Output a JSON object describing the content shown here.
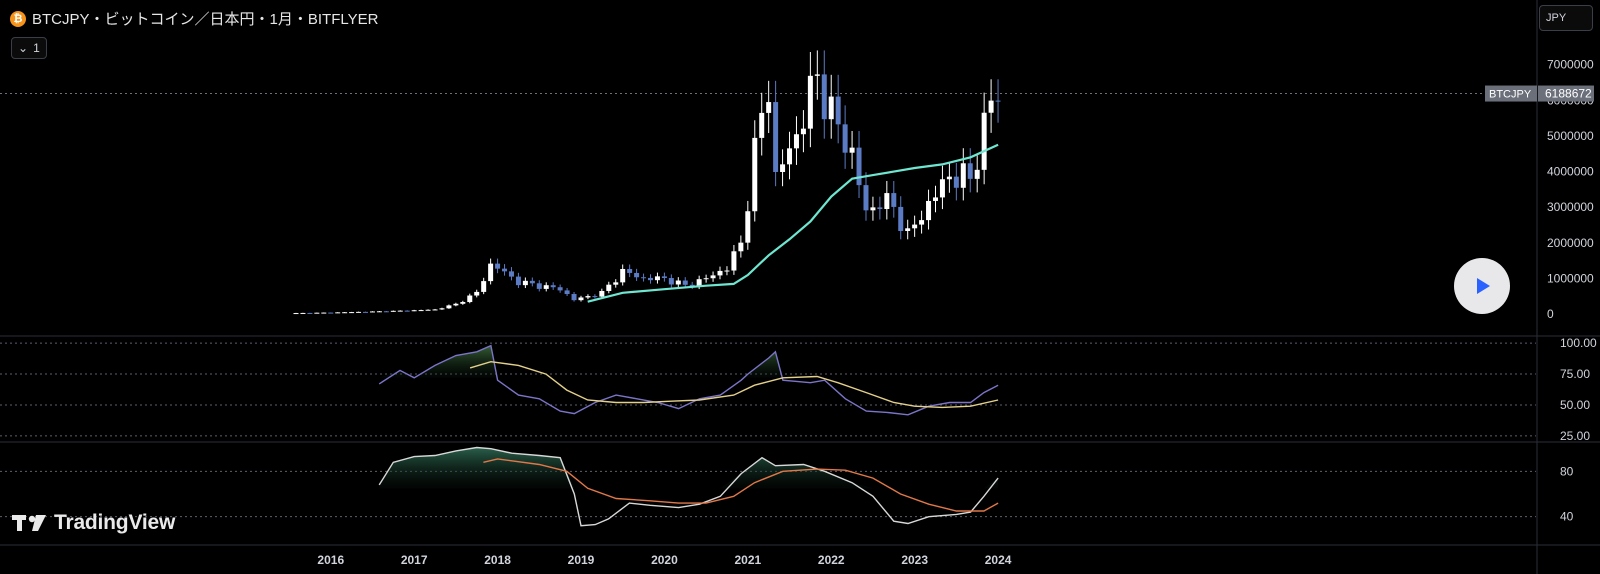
{
  "header": {
    "symbol_title": "BTCJPY・ビットコイン／日本円・1月・BITFLYER",
    "coin_glyph": "₿",
    "interval_button": "1",
    "currency_button": "JPY"
  },
  "price_badge": {
    "symbol": "BTCJPY",
    "value": "6188672"
  },
  "logo": {
    "text": "TradingView"
  },
  "colors": {
    "up_candle": "#ffffff",
    "down_candle": "#5b7bc4",
    "ma_line": "#6ee6d0",
    "rsi_line": "#7b74c9",
    "rsi_ma": "#e3d08a",
    "osc2_line": "#d8d8d8",
    "osc2_ma": "#e07848"
  },
  "chart_data": [
    {
      "type": "candlestick",
      "x_axis_labels": [
        "2016",
        "2017",
        "2018",
        "2019",
        "2020",
        "2021",
        "2022",
        "2023",
        "2024"
      ],
      "x_axis_range": [
        2015.583,
        2024.083
      ],
      "ylim": [
        -500000,
        8700000
      ],
      "y_ticks": [
        0,
        1000000,
        2000000,
        3000000,
        4000000,
        5000000,
        6000000,
        7000000
      ],
      "current_price": 6188672,
      "candles_monthly_approx_close": [
        [
          2015.58,
          30000
        ],
        [
          2016.0,
          45000
        ],
        [
          2016.5,
          72000
        ],
        [
          2016.92,
          100000
        ],
        [
          2017.25,
          130000
        ],
        [
          2017.5,
          280000
        ],
        [
          2017.75,
          600000
        ],
        [
          2017.92,
          1400000
        ],
        [
          2018.0,
          1300000
        ],
        [
          2018.25,
          900000
        ],
        [
          2018.5,
          800000
        ],
        [
          2018.75,
          700000
        ],
        [
          2018.92,
          400000
        ],
        [
          2019.25,
          600000
        ],
        [
          2019.5,
          1200000
        ],
        [
          2019.75,
          1000000
        ],
        [
          2020.0,
          1000000
        ],
        [
          2020.25,
          800000
        ],
        [
          2020.5,
          1000000
        ],
        [
          2020.75,
          1300000
        ],
        [
          2020.92,
          2000000
        ],
        [
          2021.08,
          4500000
        ],
        [
          2021.25,
          6500000
        ],
        [
          2021.33,
          3800000
        ],
        [
          2021.58,
          5000000
        ],
        [
          2021.83,
          6700000
        ],
        [
          2022.0,
          5600000
        ],
        [
          2022.25,
          4500000
        ],
        [
          2022.42,
          2800000
        ],
        [
          2022.58,
          3200000
        ],
        [
          2022.75,
          3000000
        ],
        [
          2022.92,
          2200000
        ],
        [
          2023.17,
          3100000
        ],
        [
          2023.42,
          3900000
        ],
        [
          2023.67,
          3800000
        ],
        [
          2023.83,
          5200000
        ],
        [
          2023.92,
          6000000
        ],
        [
          2024.0,
          6188672
        ]
      ],
      "ma_series": [
        [
          2019.08,
          350000
        ],
        [
          2019.5,
          600000
        ],
        [
          2020.0,
          700000
        ],
        [
          2020.5,
          800000
        ],
        [
          2020.83,
          850000
        ],
        [
          2021.0,
          1100000
        ],
        [
          2021.25,
          1650000
        ],
        [
          2021.5,
          2100000
        ],
        [
          2021.75,
          2600000
        ],
        [
          2022.0,
          3300000
        ],
        [
          2022.25,
          3800000
        ],
        [
          2022.5,
          3900000
        ],
        [
          2022.75,
          4000000
        ],
        [
          2023.0,
          4100000
        ],
        [
          2023.33,
          4200000
        ],
        [
          2023.67,
          4400000
        ],
        [
          2024.0,
          4750000
        ]
      ]
    },
    {
      "type": "line",
      "y_ticks": [
        25,
        50,
        75,
        100
      ],
      "ylim": [
        20,
        105
      ],
      "series": [
        {
          "points": [
            [
              2016.58,
              67
            ],
            [
              2016.83,
              78
            ],
            [
              2017.0,
              72
            ],
            [
              2017.25,
              82
            ],
            [
              2017.5,
              90
            ],
            [
              2017.75,
              93
            ],
            [
              2017.92,
              98
            ],
            [
              2018.0,
              70
            ],
            [
              2018.25,
              58
            ],
            [
              2018.5,
              55
            ],
            [
              2018.75,
              45
            ],
            [
              2018.92,
              43
            ],
            [
              2019.17,
              52
            ],
            [
              2019.42,
              58
            ],
            [
              2019.67,
              55
            ],
            [
              2019.92,
              52
            ],
            [
              2020.17,
              47
            ],
            [
              2020.42,
              55
            ],
            [
              2020.67,
              58
            ],
            [
              2020.92,
              70
            ],
            [
              2021.0,
              75
            ],
            [
              2021.25,
              88
            ],
            [
              2021.33,
              93
            ],
            [
              2021.42,
              70
            ],
            [
              2021.75,
              68
            ],
            [
              2021.92,
              70
            ],
            [
              2022.17,
              55
            ],
            [
              2022.42,
              45
            ],
            [
              2022.67,
              44
            ],
            [
              2022.92,
              42
            ],
            [
              2023.17,
              49
            ],
            [
              2023.42,
              52
            ],
            [
              2023.67,
              52
            ],
            [
              2023.83,
              60
            ],
            [
              2024.0,
              66
            ]
          ]
        },
        {
          "points": [
            [
              2017.67,
              80
            ],
            [
              2017.92,
              85
            ],
            [
              2018.25,
              82
            ],
            [
              2018.58,
              75
            ],
            [
              2018.83,
              62
            ],
            [
              2019.08,
              54
            ],
            [
              2019.42,
              52
            ],
            [
              2019.75,
              52
            ],
            [
              2020.08,
              53
            ],
            [
              2020.42,
              54
            ],
            [
              2020.83,
              58
            ],
            [
              2021.08,
              66
            ],
            [
              2021.42,
              72
            ],
            [
              2021.83,
              73
            ],
            [
              2022.08,
              68
            ],
            [
              2022.42,
              60
            ],
            [
              2022.75,
              52
            ],
            [
              2023.0,
              49
            ],
            [
              2023.33,
              48
            ],
            [
              2023.67,
              49
            ],
            [
              2024.0,
              54
            ]
          ]
        }
      ]
    },
    {
      "type": "line",
      "y_ticks": [
        40,
        80
      ],
      "ylim": [
        15,
        105
      ],
      "series": [
        {
          "points": [
            [
              2016.58,
              68
            ],
            [
              2016.75,
              88
            ],
            [
              2017.0,
              93
            ],
            [
              2017.25,
              94
            ],
            [
              2017.5,
              98
            ],
            [
              2017.75,
              101
            ],
            [
              2017.92,
              100
            ],
            [
              2018.17,
              96
            ],
            [
              2018.5,
              94
            ],
            [
              2018.75,
              92
            ],
            [
              2018.92,
              60
            ],
            [
              2019.0,
              32
            ],
            [
              2019.17,
              33
            ],
            [
              2019.33,
              38
            ],
            [
              2019.58,
              52
            ],
            [
              2019.83,
              50
            ],
            [
              2020.17,
              48
            ],
            [
              2020.42,
              51
            ],
            [
              2020.67,
              58
            ],
            [
              2020.92,
              78
            ],
            [
              2021.17,
              92
            ],
            [
              2021.33,
              85
            ],
            [
              2021.67,
              86
            ],
            [
              2021.92,
              80
            ],
            [
              2022.25,
              70
            ],
            [
              2022.5,
              58
            ],
            [
              2022.75,
              36
            ],
            [
              2022.92,
              34
            ],
            [
              2023.17,
              40
            ],
            [
              2023.5,
              42
            ],
            [
              2023.67,
              44
            ],
            [
              2023.83,
              58
            ],
            [
              2024.0,
              74
            ]
          ]
        },
        {
          "points": [
            [
              2017.83,
              88
            ],
            [
              2018.0,
              91
            ],
            [
              2018.5,
              86
            ],
            [
              2018.83,
              80
            ],
            [
              2019.08,
              65
            ],
            [
              2019.42,
              56
            ],
            [
              2019.83,
              54
            ],
            [
              2020.17,
              52
            ],
            [
              2020.5,
              52
            ],
            [
              2020.83,
              58
            ],
            [
              2021.08,
              70
            ],
            [
              2021.42,
              80
            ],
            [
              2021.83,
              82
            ],
            [
              2022.17,
              81
            ],
            [
              2022.5,
              74
            ],
            [
              2022.83,
              60
            ],
            [
              2023.17,
              51
            ],
            [
              2023.5,
              45
            ],
            [
              2023.83,
              45
            ],
            [
              2024.0,
              52
            ]
          ]
        }
      ]
    }
  ]
}
